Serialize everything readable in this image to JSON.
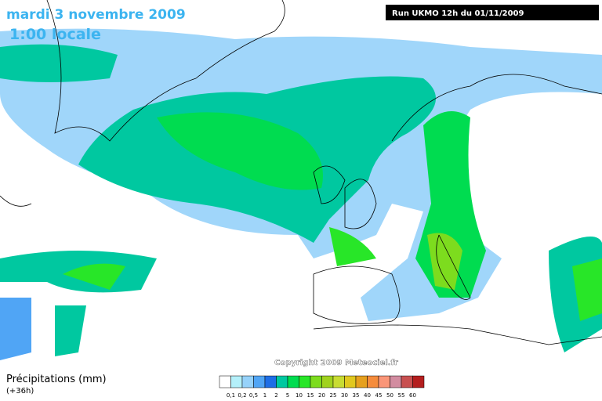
{
  "header": {
    "date": "mardi 3 novembre 2009",
    "time": "1:00 locale",
    "run": "Run UKMO 12h du 01/11/2009"
  },
  "copyright": "Copyright 2009 Meteociel.fr",
  "legend": {
    "title": "Précipitations (mm)",
    "subtitle": "(+36h)",
    "colors": [
      "#ffffff",
      "#b4f0fa",
      "#96d2fa",
      "#50a5f5",
      "#1e6ee6",
      "#00c8a0",
      "#00dc50",
      "#28e628",
      "#7ddc1e",
      "#a0d21e",
      "#c8dc32",
      "#e1c81e",
      "#e6a01e",
      "#f58c3c",
      "#fa9678",
      "#d28ca0",
      "#c85050",
      "#b41e1e"
    ],
    "labels": [
      "0,1",
      "0,2",
      "0,5",
      "1",
      "2",
      "5",
      "10",
      "15",
      "20",
      "25",
      "30",
      "35",
      "40",
      "45",
      "50",
      "55",
      "60"
    ]
  }
}
